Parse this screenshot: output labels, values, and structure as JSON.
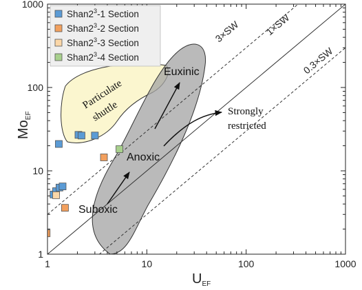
{
  "chart_data": {
    "type": "scatter",
    "x_scale": "log",
    "y_scale": "log",
    "xlim": [
      1,
      1000
    ],
    "ylim": [
      1,
      1000
    ],
    "x_ticks": [
      "1",
      "10",
      "100",
      "1000"
    ],
    "y_ticks": [
      "1",
      "10",
      "100",
      "1000"
    ],
    "xlabel": "U",
    "xlabel_sub": "EF",
    "ylabel": "Mo",
    "ylabel_sub": "EF",
    "legend_position": "top-left",
    "series": [
      {
        "name_main": "Shan2",
        "name_sup": "3",
        "name_rest": "-1 Section",
        "color": "#5b9bd5",
        "points": [
          [
            1.3,
            21
          ],
          [
            2.05,
            27
          ],
          [
            2.2,
            26.5
          ],
          [
            3.0,
            26.5
          ],
          [
            1.15,
            5.2
          ],
          [
            1.22,
            5.7
          ],
          [
            1.32,
            6.3
          ],
          [
            1.42,
            6.5
          ]
        ]
      },
      {
        "name_main": "Shan2",
        "name_sup": "3",
        "name_rest": "-2 Section",
        "color": "#f2a05e",
        "points": [
          [
            0.98,
            1.78
          ],
          [
            1.5,
            3.6
          ],
          [
            3.7,
            14.5
          ]
        ]
      },
      {
        "name_main": "Shan2",
        "name_sup": "3",
        "name_rest": "-3 Section",
        "color": "#fbd7a8",
        "points": [
          [
            1.22,
            5.1
          ]
        ]
      },
      {
        "name_main": "Shan2",
        "name_sup": "3",
        "name_rest": "-4 Section",
        "color": "#a8d08d",
        "points": [
          [
            5.3,
            18.2
          ]
        ]
      }
    ],
    "reference_lines": [
      {
        "label": "3×SW",
        "ratio": 3,
        "style": "dashed"
      },
      {
        "label": "1×SW",
        "ratio": 1,
        "style": "solid"
      },
      {
        "label": "0.3×SW",
        "ratio": 0.3,
        "style": "dashed"
      }
    ],
    "regions": [
      {
        "label_line1": "Particulate",
        "label_line2": "shuttle",
        "color": "#fbf6cf"
      }
    ],
    "annotations": [
      "Euxinic",
      "Anoxic",
      "Suboxic",
      "Strongly",
      "restricted"
    ]
  }
}
